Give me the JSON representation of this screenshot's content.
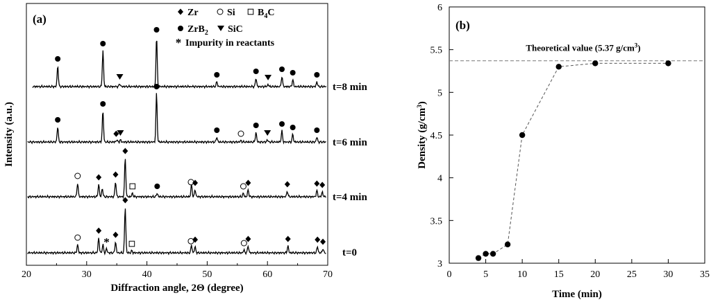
{
  "chart_data": [
    {
      "type": "line",
      "panel_label": "(a)",
      "xlabel": "Diffraction angle, 2Θ (degree)",
      "ylabel": "Intensity (a.u.)",
      "xlim": [
        20,
        70
      ],
      "x_ticks": [
        "20",
        "30",
        "40",
        "50",
        "60",
        "70"
      ],
      "legend": [
        {
          "symbol": "diamond",
          "label": "Zr"
        },
        {
          "symbol": "circle-open",
          "label": "Si"
        },
        {
          "symbol": "square-open",
          "label": "B",
          "sub": "4",
          "suffix": "C"
        },
        {
          "symbol": "circle",
          "label": "ZrB",
          "sub": "2",
          "suffix": ""
        },
        {
          "symbol": "triangle-down",
          "label": "SiC"
        },
        {
          "symbol": "star",
          "label": "Impurity in reactants"
        }
      ],
      "series": [
        {
          "name": "t=8 min",
          "peaks": [
            [
              25.2,
              30
            ],
            [
              32.7,
              52
            ],
            [
              35.5,
              4
            ],
            [
              41.6,
              72
            ],
            [
              51.6,
              7
            ],
            [
              58.1,
              12
            ],
            [
              60.1,
              3
            ],
            [
              62.4,
              15
            ],
            [
              64.2,
              10
            ],
            [
              68.2,
              7
            ]
          ],
          "markers": [
            {
              "x": 25.2,
              "s": "circle"
            },
            {
              "x": 32.7,
              "s": "circle"
            },
            {
              "x": 35.5,
              "s": "triangle-down"
            },
            {
              "x": 41.6,
              "s": "circle"
            },
            {
              "x": 51.6,
              "s": "circle"
            },
            {
              "x": 58.1,
              "s": "circle"
            },
            {
              "x": 60.1,
              "s": "triangle-down"
            },
            {
              "x": 62.4,
              "s": "circle"
            },
            {
              "x": 64.2,
              "s": "circle"
            },
            {
              "x": 68.2,
              "s": "circle"
            }
          ]
        },
        {
          "name": "t=6 min",
          "peaks": [
            [
              25.2,
              22
            ],
            [
              32.7,
              45
            ],
            [
              35.0,
              3
            ],
            [
              35.6,
              3
            ],
            [
              41.6,
              70
            ],
            [
              51.6,
              7
            ],
            [
              55.6,
              2
            ],
            [
              58.1,
              14
            ],
            [
              60.0,
              3
            ],
            [
              62.4,
              16
            ],
            [
              64.2,
              11
            ],
            [
              68.2,
              7
            ]
          ],
          "markers": [
            {
              "x": 25.2,
              "s": "circle"
            },
            {
              "x": 32.7,
              "s": "circle"
            },
            {
              "x": 34.9,
              "s": "diamond"
            },
            {
              "x": 35.6,
              "s": "triangle-down"
            },
            {
              "x": 41.6,
              "s": "circle"
            },
            {
              "x": 51.6,
              "s": "circle"
            },
            {
              "x": 55.6,
              "s": "circle-open"
            },
            {
              "x": 58.1,
              "s": "circle"
            },
            {
              "x": 60.0,
              "s": "triangle-down"
            },
            {
              "x": 62.4,
              "s": "circle"
            },
            {
              "x": 64.2,
              "s": "circle"
            },
            {
              "x": 68.2,
              "s": "circle"
            }
          ]
        },
        {
          "name": "t=4 min",
          "peaks": [
            [
              28.5,
              20
            ],
            [
              32.0,
              18
            ],
            [
              32.6,
              12
            ],
            [
              34.8,
              22
            ],
            [
              36.4,
              56
            ],
            [
              37.6,
              5
            ],
            [
              41.7,
              5
            ],
            [
              47.4,
              18
            ],
            [
              48.0,
              10
            ],
            [
              56.0,
              5
            ],
            [
              56.8,
              10
            ],
            [
              63.3,
              8
            ],
            [
              68.2,
              9
            ],
            [
              69.1,
              7
            ]
          ],
          "markers": [
            {
              "x": 28.5,
              "s": "circle-open"
            },
            {
              "x": 32.0,
              "s": "diamond"
            },
            {
              "x": 34.8,
              "s": "diamond"
            },
            {
              "x": 36.4,
              "s": "diamond"
            },
            {
              "x": 37.6,
              "s": "square-open"
            },
            {
              "x": 41.7,
              "s": "circle"
            },
            {
              "x": 47.3,
              "s": "circle-open"
            },
            {
              "x": 48.0,
              "s": "diamond"
            },
            {
              "x": 56.0,
              "s": "circle-open"
            },
            {
              "x": 56.8,
              "s": "diamond"
            },
            {
              "x": 63.3,
              "s": "diamond"
            },
            {
              "x": 68.2,
              "s": "diamond"
            },
            {
              "x": 69.1,
              "s": "diamond"
            }
          ]
        },
        {
          "name": "t=0",
          "peaks": [
            [
              28.5,
              12
            ],
            [
              32.0,
              22
            ],
            [
              32.7,
              12
            ],
            [
              33.3,
              6
            ],
            [
              34.8,
              16
            ],
            [
              36.4,
              66
            ],
            [
              37.5,
              3
            ],
            [
              47.4,
              11
            ],
            [
              48.0,
              9
            ],
            [
              56.1,
              4
            ],
            [
              56.8,
              10
            ],
            [
              63.4,
              10
            ],
            [
              68.3,
              9
            ],
            [
              69.2,
              6
            ]
          ],
          "markers": [
            {
              "x": 28.5,
              "s": "circle-open"
            },
            {
              "x": 32.0,
              "s": "diamond"
            },
            {
              "x": 33.3,
              "s": "star"
            },
            {
              "x": 34.8,
              "s": "diamond"
            },
            {
              "x": 36.4,
              "s": "diamond"
            },
            {
              "x": 37.5,
              "s": "square-open"
            },
            {
              "x": 47.3,
              "s": "circle-open"
            },
            {
              "x": 48.0,
              "s": "diamond"
            },
            {
              "x": 56.1,
              "s": "circle-open"
            },
            {
              "x": 56.8,
              "s": "diamond"
            },
            {
              "x": 63.4,
              "s": "diamond"
            },
            {
              "x": 68.3,
              "s": "diamond"
            },
            {
              "x": 69.2,
              "s": "diamond"
            }
          ]
        }
      ]
    },
    {
      "type": "scatter",
      "panel_label": "(b)",
      "xlabel": "Time (min)",
      "ylabel": "Density (g/cm",
      "ylabel_sup": "3",
      "ylabel_suffix": ")",
      "xlim": [
        0,
        35
      ],
      "ylim": [
        3,
        6
      ],
      "x_ticks": [
        0,
        5,
        10,
        15,
        20,
        25,
        30,
        35
      ],
      "y_ticks": [
        "3",
        "3.5",
        "4",
        "4.5",
        "5",
        "5.5",
        "6"
      ],
      "points": [
        [
          4,
          3.06
        ],
        [
          5,
          3.11
        ],
        [
          6,
          3.11
        ],
        [
          8,
          3.22
        ],
        [
          10,
          4.5
        ],
        [
          15,
          5.3
        ],
        [
          20,
          5.34
        ],
        [
          30,
          5.34
        ]
      ],
      "reference": {
        "y": 5.37,
        "label": "Theoretical value (5.37 g/cm",
        "label_sup": "3",
        "label_suffix": ")"
      },
      "connector": "dashed"
    }
  ]
}
